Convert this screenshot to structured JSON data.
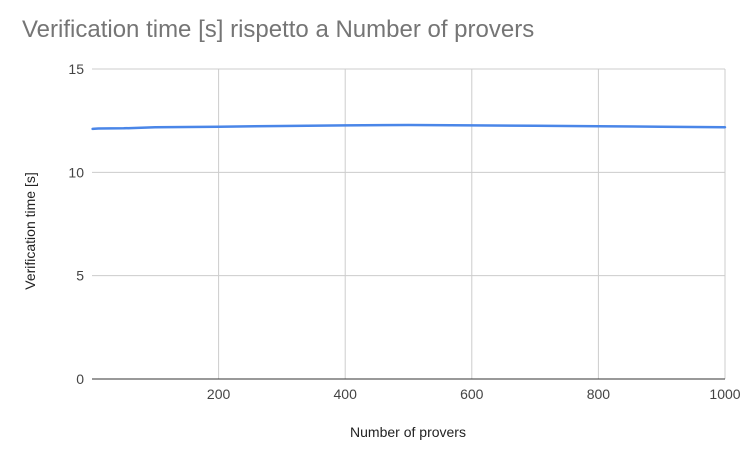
{
  "chart_data": {
    "type": "line",
    "title": "Verification time [s] rispetto a Number of provers",
    "xlabel": "Number of provers",
    "ylabel": "Verification time [s]",
    "xlim": [
      0,
      1000
    ],
    "ylim": [
      0,
      15
    ],
    "x_ticks": [
      200,
      400,
      600,
      800,
      1000
    ],
    "y_ticks": [
      0,
      5,
      10,
      15
    ],
    "grid": true,
    "legend": "none",
    "colors": {
      "line": "#4a86e8",
      "grid": "#cccccc",
      "axis": "#333333"
    },
    "series": [
      {
        "x": [
          1,
          10,
          50,
          100,
          200,
          300,
          400,
          500,
          600,
          700,
          800,
          900,
          1000
        ],
        "values": [
          12.1,
          12.12,
          12.13,
          12.18,
          12.21,
          12.24,
          12.27,
          12.29,
          12.27,
          12.25,
          12.23,
          12.21,
          12.18
        ]
      }
    ]
  }
}
